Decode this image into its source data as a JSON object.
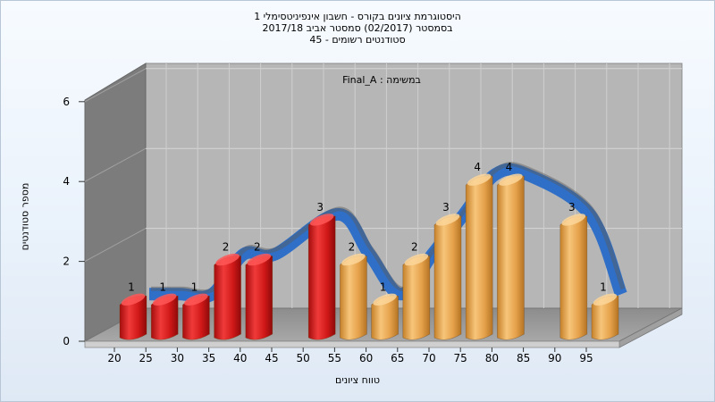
{
  "titles": {
    "line1": "היסטוגרמת ציונים בקורס - חשבון אינפיניטסימלי 1",
    "line2": "בסמסטר  (02/2017)  סמסטר אביב 2017/18",
    "line3": "סטודנטים רשומים - 45"
  },
  "chart_data": {
    "type": "bar",
    "subtitle": "במשימה : Final_A",
    "xlabel": "טווח ציונים",
    "ylabel": "מספר סטודנטים",
    "ylim": [
      0,
      6
    ],
    "y_ticks": [
      0,
      2,
      4,
      6
    ],
    "grid": true,
    "categories": [
      "20",
      "25",
      "30",
      "35",
      "40",
      "45",
      "50",
      "55",
      "60",
      "65",
      "70",
      "75",
      "80",
      "85",
      "90",
      "95"
    ],
    "values": [
      1,
      1,
      1,
      2,
      2,
      null,
      3,
      2,
      1,
      2,
      3,
      4,
      4,
      null,
      3,
      1
    ],
    "bar_colors": [
      "red",
      "red",
      "red",
      "red",
      "red",
      null,
      "red",
      "orange",
      "orange",
      "orange",
      "orange",
      "orange",
      "orange",
      null,
      "orange",
      "orange"
    ],
    "colors": {
      "red": "#d81c1c",
      "orange": "#e9a94c",
      "trend_front": "#2f6fc7",
      "trend_back": "#5e5e5e",
      "plot_back": "#b6b6b6",
      "plot_left": "#7c7c7c",
      "plot_floor": "#959595"
    }
  }
}
